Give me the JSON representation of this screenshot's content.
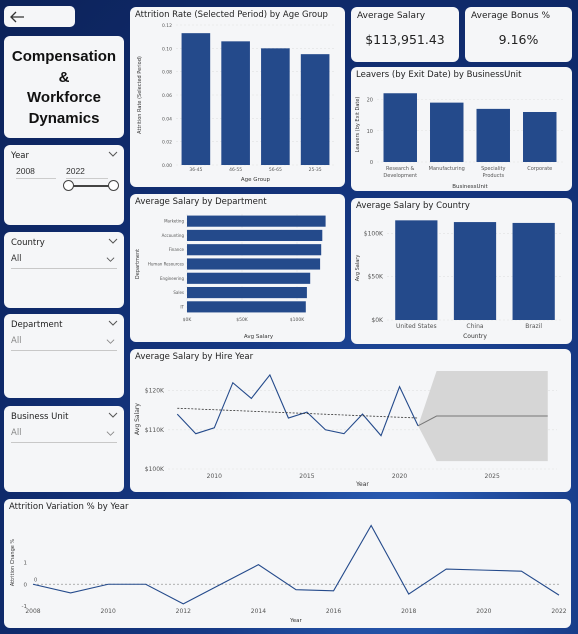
{
  "back_button": {
    "icon": "arrow-left-icon"
  },
  "title": {
    "line1": "Compensation",
    "line2": "&",
    "line3": "Workforce",
    "line4": "Dynamics"
  },
  "slicers": {
    "year": {
      "label": "Year",
      "start": "2008",
      "end": "2022"
    },
    "country": {
      "label": "Country",
      "value": "All"
    },
    "department": {
      "label": "Department",
      "value": "All"
    },
    "business_unit": {
      "label": "Business Unit",
      "value": "All"
    }
  },
  "kpis": {
    "avg_salary": {
      "label": "Average Salary",
      "value": "$113,951.43"
    },
    "avg_bonus": {
      "label": "Average Bonus %",
      "value": "9.16%"
    }
  },
  "chart_data": [
    {
      "id": "attrition_age",
      "type": "bar",
      "title": "Attrition Rate (Selected Period) by Age Group",
      "xlabel": "Age Group",
      "ylabel": "Attrition Rate (Selected Period)",
      "categories": [
        "36-45",
        "46-55",
        "56-65",
        "25-35"
      ],
      "values": [
        0.113,
        0.106,
        0.1,
        0.095
      ],
      "ylim": [
        0,
        0.12
      ],
      "yticks": [
        0,
        0.02,
        0.04,
        0.06,
        0.08,
        0.1,
        0.12
      ],
      "ytick_labels": [
        "0.00",
        "0.02",
        "0.04",
        "0.06",
        "0.08",
        "0.10",
        "0.12"
      ],
      "color": "#244a8b"
    },
    {
      "id": "leavers_bu",
      "type": "bar",
      "title": "Leavers (by Exit Date) by BusinessUnit",
      "xlabel": "BusinessUnit",
      "ylabel": "Leavers (by Exit Date)",
      "categories": [
        [
          "Research &",
          "Development"
        ],
        [
          "Manufacturing"
        ],
        [
          "Speciality",
          "Products"
        ],
        [
          "Corporate"
        ]
      ],
      "values": [
        22,
        19,
        17,
        16
      ],
      "ylim": [
        0,
        24
      ],
      "yticks": [
        0,
        10,
        20
      ],
      "ytick_labels": [
        "0",
        "10",
        "20"
      ],
      "color": "#244a8b"
    },
    {
      "id": "salary_dept",
      "type": "bar",
      "orientation": "horizontal",
      "title": "Average Salary by Department",
      "xlabel": "Avg Salary",
      "ylabel": "Department",
      "categories": [
        "Marketing",
        "Accounting",
        "Finance",
        "Human Resources",
        "Engineering",
        "Sales",
        "IT"
      ],
      "values": [
        126000,
        123000,
        122000,
        121000,
        112000,
        109000,
        108000
      ],
      "xlim": [
        0,
        130000
      ],
      "xticks": [
        0,
        50000,
        100000
      ],
      "xtick_labels": [
        "$0K",
        "$50K",
        "$100K"
      ],
      "color": "#244a8b"
    },
    {
      "id": "salary_country",
      "type": "bar",
      "title": "Average Salary by Country",
      "xlabel": "Country",
      "ylabel": "Avg Salary",
      "categories": [
        "United States",
        "China",
        "Brazil"
      ],
      "values": [
        115000,
        113000,
        112000
      ],
      "ylim": [
        0,
        120000
      ],
      "yticks": [
        0,
        50000,
        100000
      ],
      "ytick_labels": [
        "$0K",
        "$50K",
        "$100K"
      ],
      "color": "#244a8b"
    },
    {
      "id": "salary_hire_year",
      "type": "line",
      "title": "Average Salary by Hire Year",
      "xlabel": "Year",
      "ylabel": "Avg Salary",
      "x": [
        2008,
        2009,
        2010,
        2011,
        2012,
        2013,
        2014,
        2015,
        2016,
        2017,
        2018,
        2019,
        2020,
        2021
      ],
      "values": [
        114000,
        109000,
        110500,
        122000,
        118000,
        124000,
        113000,
        114500,
        110000,
        109000,
        114000,
        108500,
        121000,
        111000
      ],
      "trend": {
        "x": [
          2008,
          2021
        ],
        "values": [
          115500,
          113000
        ]
      },
      "forecast": {
        "x": [
          2021,
          2022,
          2023,
          2024,
          2025,
          2026,
          2027,
          2028
        ],
        "values": [
          111000,
          113500,
          113500,
          113500,
          113500,
          113500,
          113500,
          113500
        ],
        "upper": [
          111000,
          125000,
          125000,
          125000,
          125000,
          125000,
          125000,
          125000
        ],
        "lower": [
          111000,
          102000,
          102000,
          102000,
          102000,
          102000,
          102000,
          102000
        ]
      },
      "xlim": [
        2007.5,
        2028.5
      ],
      "ylim": [
        100000,
        125500
      ],
      "xticks": [
        2010,
        2015,
        2020,
        2025
      ],
      "xtick_labels": [
        "2010",
        "2015",
        "2020",
        "2025"
      ],
      "yticks": [
        100000,
        110000,
        120000
      ],
      "ytick_labels": [
        "$100K",
        "$110K",
        "$120K"
      ],
      "color": "#244a8b"
    },
    {
      "id": "attrition_variation",
      "type": "line",
      "title": "Attrition Variation % by Year",
      "xlabel": "Year",
      "ylabel": "Attrition Change %",
      "x": [
        2008,
        2009,
        2010,
        2011,
        2012,
        2013,
        2014,
        2015,
        2016,
        2017,
        2018,
        2019,
        2020,
        2021,
        2022
      ],
      "values": [
        0,
        -0.4,
        0,
        0,
        -0.9,
        0,
        0.9,
        -0.25,
        -0.3,
        2.7,
        -0.45,
        0.7,
        0.65,
        0.6,
        -0.5
      ],
      "reference_label": "0",
      "xlim": [
        2008,
        2022
      ],
      "ylim": [
        -1,
        3
      ],
      "xticks": [
        2008,
        2010,
        2012,
        2014,
        2016,
        2018,
        2020,
        2022
      ],
      "xtick_labels": [
        "2008",
        "2010",
        "2012",
        "2014",
        "2016",
        "2018",
        "2020",
        "2022"
      ],
      "yticks": [
        -1,
        0,
        1
      ],
      "ytick_labels": [
        "-1",
        "0",
        "1"
      ],
      "color": "#244a8b"
    }
  ]
}
